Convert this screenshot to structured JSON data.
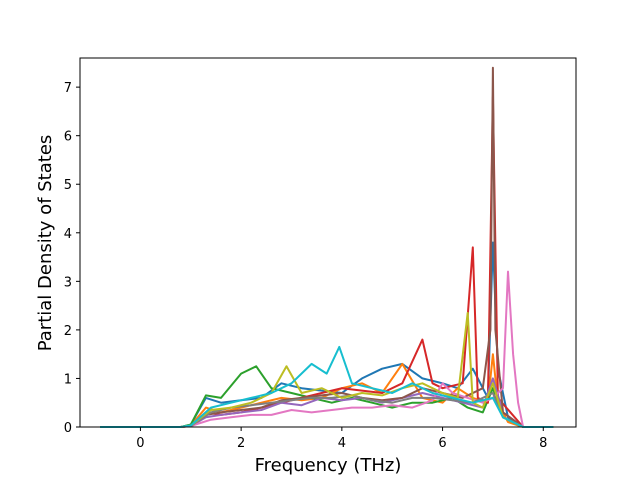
{
  "chart_data": {
    "type": "line",
    "title": "",
    "xlabel": "Frequency (THz)",
    "ylabel": "Partial Density of States",
    "xlim": [
      -1.2,
      8.65
    ],
    "ylim": [
      0,
      7.6
    ],
    "xticks": [
      0,
      2,
      4,
      6,
      8
    ],
    "yticks": [
      0,
      1,
      2,
      3,
      4,
      5,
      6,
      7
    ],
    "grid": false,
    "legend": "none",
    "colors": [
      "#1f77b4",
      "#ff7f0e",
      "#2ca02c",
      "#d62728",
      "#9467bd",
      "#8c564b",
      "#e377c2",
      "#7f7f7f",
      "#bcbd22",
      "#17becf"
    ],
    "series": [
      {
        "color": "#1f77b4",
        "x": [
          -0.8,
          0.8,
          1.0,
          1.3,
          1.6,
          2.0,
          2.4,
          2.8,
          3.2,
          3.6,
          4.0,
          4.4,
          4.8,
          5.2,
          5.6,
          6.0,
          6.3,
          6.6,
          6.9,
          7.0,
          7.1,
          7.3,
          7.6,
          8.2
        ],
        "y": [
          0,
          0,
          0.05,
          0.6,
          0.5,
          0.55,
          0.6,
          0.9,
          0.8,
          0.75,
          0.7,
          1.0,
          1.2,
          1.3,
          1.0,
          0.9,
          0.8,
          1.2,
          0.6,
          3.8,
          1.2,
          0.2,
          0,
          0
        ]
      },
      {
        "color": "#ff7f0e",
        "x": [
          -0.8,
          0.8,
          1.0,
          1.3,
          1.6,
          2.0,
          2.4,
          2.8,
          3.2,
          3.6,
          4.0,
          4.4,
          4.8,
          5.2,
          5.6,
          6.0,
          6.3,
          6.6,
          6.9,
          7.0,
          7.1,
          7.3,
          7.6,
          8.2
        ],
        "y": [
          0,
          0,
          0.03,
          0.4,
          0.3,
          0.4,
          0.5,
          0.6,
          0.55,
          0.6,
          0.8,
          0.9,
          0.7,
          1.3,
          0.6,
          0.5,
          0.8,
          0.6,
          0.5,
          1.5,
          0.5,
          0.1,
          0,
          0
        ]
      },
      {
        "color": "#2ca02c",
        "x": [
          -0.8,
          0.8,
          1.0,
          1.3,
          1.6,
          2.0,
          2.3,
          2.6,
          3.0,
          3.4,
          3.8,
          4.2,
          4.6,
          5.0,
          5.4,
          5.8,
          6.2,
          6.5,
          6.8,
          7.0,
          7.2,
          7.6,
          8.2
        ],
        "y": [
          0,
          0,
          0.05,
          0.65,
          0.6,
          1.1,
          1.25,
          0.8,
          0.7,
          0.6,
          0.5,
          0.6,
          0.5,
          0.4,
          0.5,
          0.5,
          0.6,
          0.4,
          0.3,
          0.8,
          0.2,
          0,
          0
        ]
      },
      {
        "color": "#d62728",
        "x": [
          -0.8,
          0.8,
          1.0,
          1.3,
          1.6,
          2.0,
          2.4,
          2.8,
          3.2,
          3.6,
          4.0,
          4.4,
          4.8,
          5.2,
          5.6,
          5.8,
          6.0,
          6.4,
          6.6,
          6.7,
          6.9,
          7.0,
          7.1,
          7.6,
          8.2
        ],
        "y": [
          0,
          0,
          0.02,
          0.3,
          0.25,
          0.3,
          0.4,
          0.5,
          0.6,
          0.7,
          0.8,
          0.75,
          0.7,
          0.9,
          1.8,
          0.9,
          0.8,
          0.9,
          3.7,
          0.6,
          0.5,
          6.8,
          0.6,
          0,
          0
        ]
      },
      {
        "color": "#9467bd",
        "x": [
          -0.8,
          0.8,
          1.0,
          1.3,
          1.6,
          2.0,
          2.4,
          2.8,
          3.2,
          3.6,
          4.0,
          4.4,
          4.8,
          5.2,
          5.6,
          6.0,
          6.4,
          6.8,
          7.0,
          7.2,
          7.6,
          8.2
        ],
        "y": [
          0,
          0,
          0.02,
          0.2,
          0.25,
          0.3,
          0.35,
          0.5,
          0.45,
          0.6,
          0.55,
          0.6,
          0.5,
          0.6,
          0.7,
          0.6,
          0.5,
          0.4,
          1.0,
          0.3,
          0,
          0
        ]
      },
      {
        "color": "#8c564b",
        "x": [
          -0.8,
          0.8,
          1.0,
          1.3,
          1.6,
          2.0,
          2.4,
          2.8,
          3.2,
          3.6,
          4.0,
          4.4,
          4.8,
          5.2,
          5.6,
          6.0,
          6.4,
          6.8,
          6.95,
          7.0,
          7.05,
          7.2,
          7.6,
          8.2
        ],
        "y": [
          0,
          0,
          0.02,
          0.25,
          0.3,
          0.35,
          0.4,
          0.55,
          0.6,
          0.65,
          0.7,
          0.6,
          0.55,
          0.6,
          0.8,
          0.7,
          0.6,
          0.8,
          2.0,
          7.4,
          2.0,
          0.3,
          0,
          0
        ]
      },
      {
        "color": "#e377c2",
        "x": [
          -0.8,
          0.8,
          1.0,
          1.4,
          1.8,
          2.2,
          2.6,
          3.0,
          3.4,
          3.8,
          4.2,
          4.6,
          5.0,
          5.4,
          5.8,
          6.0,
          6.2,
          6.5,
          6.8,
          7.0,
          7.2,
          7.3,
          7.4,
          7.5,
          7.6,
          8.2
        ],
        "y": [
          0,
          0,
          0.02,
          0.15,
          0.2,
          0.25,
          0.25,
          0.35,
          0.3,
          0.35,
          0.4,
          0.4,
          0.45,
          0.4,
          0.55,
          0.9,
          0.7,
          0.6,
          0.5,
          0.6,
          0.8,
          3.2,
          1.5,
          0.5,
          0,
          0
        ]
      },
      {
        "color": "#7f7f7f",
        "x": [
          -0.8,
          0.8,
          1.0,
          1.4,
          1.8,
          2.2,
          2.6,
          3.0,
          3.4,
          3.8,
          4.2,
          4.6,
          5.0,
          5.4,
          5.8,
          6.2,
          6.6,
          7.0,
          7.2,
          7.6,
          8.2
        ],
        "y": [
          0,
          0,
          0.02,
          0.3,
          0.4,
          0.45,
          0.5,
          0.55,
          0.6,
          0.6,
          0.65,
          0.55,
          0.5,
          0.6,
          0.6,
          0.55,
          0.5,
          0.7,
          0.2,
          0,
          0
        ]
      },
      {
        "color": "#bcbd22",
        "x": [
          -0.8,
          0.8,
          1.0,
          1.4,
          1.8,
          2.2,
          2.6,
          2.9,
          3.2,
          3.6,
          4.0,
          4.4,
          4.8,
          5.2,
          5.6,
          6.0,
          6.3,
          6.5,
          6.6,
          6.8,
          7.0,
          7.2,
          7.6,
          8.2
        ],
        "y": [
          0,
          0,
          0.03,
          0.35,
          0.4,
          0.5,
          0.7,
          1.25,
          0.7,
          0.8,
          0.6,
          0.7,
          0.65,
          0.8,
          0.9,
          0.7,
          0.6,
          2.35,
          0.5,
          0.4,
          0.9,
          0.2,
          0,
          0
        ]
      },
      {
        "color": "#17becf",
        "x": [
          -0.8,
          0.8,
          1.0,
          1.4,
          1.8,
          2.2,
          2.6,
          3.0,
          3.4,
          3.7,
          3.95,
          4.2,
          4.6,
          5.0,
          5.4,
          5.8,
          6.2,
          6.6,
          7.0,
          7.2,
          7.6,
          8.2
        ],
        "y": [
          0,
          0,
          0.03,
          0.4,
          0.5,
          0.6,
          0.7,
          0.9,
          1.3,
          1.1,
          1.65,
          0.9,
          0.8,
          0.7,
          0.9,
          0.7,
          0.6,
          0.5,
          0.6,
          0.2,
          0,
          0
        ]
      }
    ]
  }
}
